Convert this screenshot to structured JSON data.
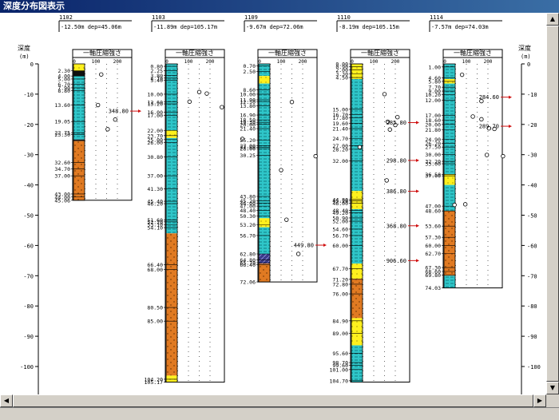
{
  "window": {
    "title": "深度分布図表示"
  },
  "axis": {
    "label_line1": "深度",
    "label_line2": "(m)",
    "ticks": [
      0,
      -10,
      -20,
      -30,
      -40,
      -50,
      -60,
      -70,
      -80,
      -90,
      -100
    ]
  },
  "test_label": "一軸圧縮強さ",
  "strength_ticks": [
    "0",
    "100",
    "200"
  ],
  "colors": {
    "clay": "#e07a22",
    "silt": "#2fc6c9",
    "sand": "#fff01e",
    "gravel": "#101010",
    "peat": "#3a3a8a",
    "arrow": "#d01010"
  },
  "boreholes": [
    {
      "id": "1102",
      "info": "-12.50m dep=45.06m",
      "depth": 45.06,
      "layers": [
        {
          "top": 0,
          "bottom": 2.3,
          "soil": "sand"
        },
        {
          "top": 2.3,
          "bottom": 4.0,
          "soil": "gravel"
        },
        {
          "top": 4.0,
          "bottom": 25.0,
          "soil": "silt"
        },
        {
          "top": 25.0,
          "bottom": 25.5,
          "soil": "gravel"
        },
        {
          "top": 25.5,
          "bottom": 45.06,
          "soil": "clay"
        }
      ],
      "depth_labels": [
        "2.30",
        "4.00",
        "5.00",
        "6.70",
        "7.90",
        "8.80",
        "13.60",
        "19.05",
        "22.75",
        "23.30",
        "32.60",
        "34.70",
        "37.00",
        "43.00",
        "44.00",
        "45.06"
      ],
      "points": [
        {
          "depth": 3.5,
          "value": 125
        },
        {
          "depth": 13.6,
          "value": 110
        },
        {
          "depth": 18.4,
          "value": 190
        },
        {
          "depth": 21.6,
          "value": 155
        }
      ],
      "markers": [
        {
          "depth": 15.6,
          "label": "348.80"
        }
      ]
    },
    {
      "id": "1103",
      "info": "-11.89m dep=105.17m",
      "depth": 105.17,
      "layers": [
        {
          "top": 0,
          "bottom": 22.0,
          "soil": "silt"
        },
        {
          "top": 22.0,
          "bottom": 24.5,
          "soil": "sand"
        },
        {
          "top": 24.5,
          "bottom": 56.0,
          "soil": "silt"
        },
        {
          "top": 56.0,
          "bottom": 103.0,
          "soil": "clay"
        },
        {
          "top": 103.0,
          "bottom": 105.17,
          "soil": "sand"
        }
      ],
      "depth_labels": [
        "0.80",
        "2.25",
        "3.80",
        "4.70",
        "5.40",
        "10.00",
        "12.60",
        "13.20",
        "16.00",
        "17.00",
        "22.00",
        "23.70",
        "25.00",
        "26.00",
        "30.80",
        "37.00",
        "41.30",
        "45.40",
        "46.20",
        "51.60",
        "52.20",
        "53.10",
        "54.10",
        "66.40",
        "68.00",
        "80.50",
        "85.00",
        "104.20",
        "105.17"
      ],
      "points": [
        {
          "depth": 9.3,
          "value": 150
        },
        {
          "depth": 9.8,
          "value": 185
        },
        {
          "depth": 12.5,
          "value": 105
        },
        {
          "depth": 14.3,
          "value": 255
        },
        {
          "depth": 24.8,
          "value": 350
        }
      ],
      "markers": []
    },
    {
      "id": "1109",
      "info": "-9.67m dep=72.06m",
      "depth": 72.06,
      "layers": [
        {
          "top": 0,
          "bottom": 4.0,
          "soil": "silt"
        },
        {
          "top": 4.0,
          "bottom": 6.5,
          "soil": "sand"
        },
        {
          "top": 6.5,
          "bottom": 51.0,
          "soil": "silt"
        },
        {
          "top": 51.0,
          "bottom": 54.0,
          "soil": "sand"
        },
        {
          "top": 54.0,
          "bottom": 62.8,
          "soil": "silt"
        },
        {
          "top": 62.8,
          "bottom": 66.0,
          "soil": "peat"
        },
        {
          "top": 66.0,
          "bottom": 72.06,
          "soil": "clay"
        }
      ],
      "depth_labels": [
        "0.70",
        "2.50",
        "8.60",
        "10.00",
        "11.90",
        "12.50",
        "13.80",
        "16.90",
        "18.50",
        "19.30",
        "20.00",
        "21.40",
        "25.20",
        "27.00",
        "27.60",
        "28.00",
        "30.25",
        "43.80",
        "45.20",
        "46.00",
        "47.00",
        "48.40",
        "50.30",
        "53.20",
        "56.70",
        "62.80",
        "64.80",
        "65.70",
        "66.40",
        "72.06"
      ],
      "points": [
        {
          "depth": 12.6,
          "value": 150
        },
        {
          "depth": 30.5,
          "value": 260
        },
        {
          "depth": 35.1,
          "value": 100
        },
        {
          "depth": 51.5,
          "value": 125
        },
        {
          "depth": 62.8,
          "value": 180
        }
      ],
      "markers": [
        {
          "depth": 59.9,
          "label": "449.80"
        }
      ]
    },
    {
      "id": "1110",
      "info": "-8.19m dep=105.15m",
      "depth": 105.15,
      "layers": [
        {
          "top": 0,
          "bottom": 5.0,
          "soil": "sand"
        },
        {
          "top": 5.0,
          "bottom": 42.0,
          "soil": "silt"
        },
        {
          "top": 42.0,
          "bottom": 48.0,
          "soil": "sand"
        },
        {
          "top": 48.0,
          "bottom": 66.0,
          "soil": "silt"
        },
        {
          "top": 66.0,
          "bottom": 71.0,
          "soil": "sand"
        },
        {
          "top": 71.0,
          "bottom": 84.0,
          "soil": "clay"
        },
        {
          "top": 84.0,
          "bottom": 93.0,
          "soil": "sand"
        },
        {
          "top": 93.0,
          "bottom": 105.15,
          "soil": "silt"
        }
      ],
      "depth_labels": [
        "0.00",
        "0.90",
        "2.00",
        "3.30",
        "4.50",
        "15.00",
        "16.70",
        "17.80",
        "19.60",
        "21.40",
        "24.70",
        "27.00",
        "28.20",
        "32.00",
        "44.80",
        "45.20",
        "46.00",
        "48.40",
        "49.20",
        "50.90",
        "52.00",
        "54.60",
        "56.70",
        "60.00",
        "67.70",
        "71.20",
        "72.80",
        "76.00",
        "84.90",
        "89.00",
        "95.60",
        "98.70",
        "99.60",
        "101.00",
        "104.70"
      ],
      "points": [
        {
          "depth": 10.0,
          "value": 150
        },
        {
          "depth": 17.6,
          "value": 210
        },
        {
          "depth": 19.1,
          "value": 165
        },
        {
          "depth": 20.2,
          "value": 200
        },
        {
          "depth": 21.7,
          "value": 175
        },
        {
          "depth": 27.5,
          "value": 35
        },
        {
          "depth": 38.5,
          "value": 160
        }
      ],
      "markers": [
        {
          "depth": 19.4,
          "label": "285.80"
        },
        {
          "depth": 31.9,
          "label": "298.80"
        },
        {
          "depth": 42.1,
          "label": "386.80"
        },
        {
          "depth": 53.5,
          "label": "368.80"
        },
        {
          "depth": 65.0,
          "label": "906.60"
        }
      ]
    },
    {
      "id": "1114",
      "info": "-7.57m dep=74.03m",
      "depth": 74.03,
      "layers": [
        {
          "top": 0,
          "bottom": 5.0,
          "soil": "silt"
        },
        {
          "top": 5.0,
          "bottom": 6.5,
          "soil": "sand"
        },
        {
          "top": 6.5,
          "bottom": 36.5,
          "soil": "silt"
        },
        {
          "top": 36.5,
          "bottom": 40.0,
          "soil": "sand"
        },
        {
          "top": 40.0,
          "bottom": 48.6,
          "soil": "silt"
        },
        {
          "top": 48.6,
          "bottom": 70.0,
          "soil": "clay"
        },
        {
          "top": 70.0,
          "bottom": 74.03,
          "soil": "silt"
        }
      ],
      "depth_labels": [
        "1.00",
        "4.60",
        "5.80",
        "7.70",
        "9.00",
        "10.20",
        "12.00",
        "17.00",
        "18.60",
        "20.00",
        "21.80",
        "24.90",
        "26.20",
        "27.50",
        "30.00",
        "32.20",
        "33.00",
        "36.50",
        "37.00",
        "47.00",
        "48.60",
        "53.60",
        "57.30",
        "60.00",
        "62.70",
        "67.30",
        "68.60",
        "69.80",
        "74.03"
      ],
      "points": [
        {
          "depth": 3.6,
          "value": 80
        },
        {
          "depth": 12.3,
          "value": 170
        },
        {
          "depth": 17.4,
          "value": 130
        },
        {
          "depth": 18.3,
          "value": 170
        },
        {
          "depth": 21.3,
          "value": 205
        },
        {
          "depth": 21.5,
          "value": 230
        },
        {
          "depth": 30.1,
          "value": 195
        },
        {
          "depth": 30.5,
          "value": 270
        },
        {
          "depth": 46.6,
          "value": 45
        },
        {
          "depth": 46.4,
          "value": 95
        }
      ],
      "markers": [
        {
          "depth": 11.0,
          "label": "284.60"
        },
        {
          "depth": 20.6,
          "label": "289.70"
        }
      ]
    }
  ]
}
